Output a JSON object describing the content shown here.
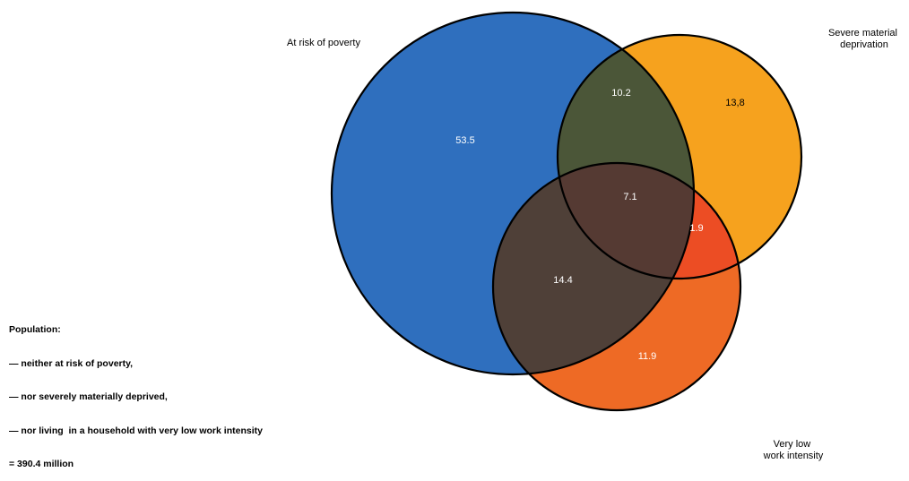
{
  "sets": [
    {
      "id": "poverty",
      "label_lines": [
        "At risk of poverty"
      ],
      "color": "#2f6fbe"
    },
    {
      "id": "deprivation",
      "label_lines": [
        "Severe material",
        "deprivation"
      ],
      "color": "#f6a21e"
    },
    {
      "id": "work",
      "label_lines": [
        "Very low",
        "work intensity"
      ],
      "color": "#ee6a25"
    }
  ],
  "regions": [
    {
      "id": "poverty-only",
      "value": "53.5",
      "color": "#2f6fbe",
      "text_color": "#ffffff"
    },
    {
      "id": "deprivation-only",
      "value": "13,8",
      "color": "#f6a21e",
      "text_color": "#000000"
    },
    {
      "id": "work-only",
      "value": "11.9",
      "color": "#ee6a25",
      "text_color": "#ffffff"
    },
    {
      "id": "poverty-deprivation",
      "value": "10.2",
      "color": "#4b5638",
      "text_color": "#ffffff"
    },
    {
      "id": "poverty-work",
      "value": "14.4",
      "color": "#4f4038",
      "text_color": "#ffffff"
    },
    {
      "id": "deprivation-work",
      "value": "1.9",
      "color": "#ec4d24",
      "text_color": "#ffffff"
    },
    {
      "id": "all-three",
      "value": "7.1",
      "color": "#553a33",
      "text_color": "#ffffff"
    }
  ],
  "note": {
    "lines": [
      "Population:",
      "— neither at risk of poverty,",
      "— nor severely materially deprived,",
      "— nor living  in a household with very low work intensity",
      "= 390.4 million"
    ]
  }
}
